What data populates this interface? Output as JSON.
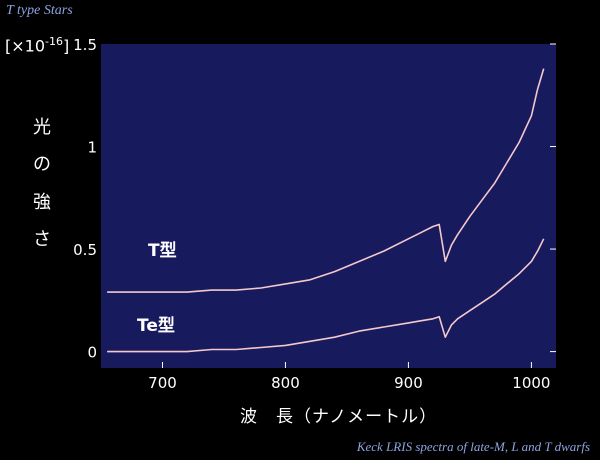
{
  "header": {
    "title": "T type Stars"
  },
  "caption": "Keck LRIS spectra of late-M, L and T dwarfs",
  "axis": {
    "multiplier": "[×10",
    "multiplier_exp": "-16",
    "multiplier_close": "]",
    "ylabel_chars": [
      "光",
      "の",
      "強",
      "さ"
    ],
    "xlabel": "波　長（ナノメートル）"
  },
  "colors": {
    "plot_bg": "#181a5e",
    "line": "#f4c8cc",
    "axis_text": "#ffffff",
    "caption": "#8fa4e0"
  },
  "chart_data": {
    "type": "line",
    "xlim": [
      650,
      1020
    ],
    "ylim": [
      -0.08,
      1.5
    ],
    "x_ticks": [
      700,
      800,
      900,
      1000
    ],
    "y_ticks": [
      0,
      0.5,
      1,
      1.5
    ],
    "y_tick_labels": [
      "0",
      "0.5",
      "1",
      "1.5"
    ],
    "series": [
      {
        "name": "T型",
        "x": [
          655,
          680,
          700,
          720,
          740,
          760,
          780,
          800,
          820,
          840,
          860,
          880,
          900,
          910,
          920,
          925,
          930,
          935,
          940,
          950,
          960,
          970,
          980,
          990,
          1000,
          1005,
          1010
        ],
        "y": [
          0.29,
          0.29,
          0.29,
          0.29,
          0.3,
          0.3,
          0.31,
          0.33,
          0.35,
          0.39,
          0.44,
          0.49,
          0.55,
          0.58,
          0.61,
          0.62,
          0.44,
          0.52,
          0.57,
          0.66,
          0.74,
          0.82,
          0.92,
          1.02,
          1.15,
          1.28,
          1.38
        ]
      },
      {
        "name": "Te型",
        "x": [
          655,
          680,
          700,
          720,
          740,
          760,
          780,
          800,
          820,
          840,
          860,
          880,
          900,
          910,
          920,
          925,
          930,
          935,
          940,
          950,
          960,
          970,
          980,
          990,
          1000,
          1005,
          1010
        ],
        "y": [
          0.0,
          0.0,
          0.0,
          0.0,
          0.01,
          0.01,
          0.02,
          0.03,
          0.05,
          0.07,
          0.1,
          0.12,
          0.14,
          0.15,
          0.16,
          0.17,
          0.07,
          0.13,
          0.16,
          0.2,
          0.24,
          0.28,
          0.33,
          0.38,
          0.44,
          0.49,
          0.55
        ]
      }
    ]
  }
}
